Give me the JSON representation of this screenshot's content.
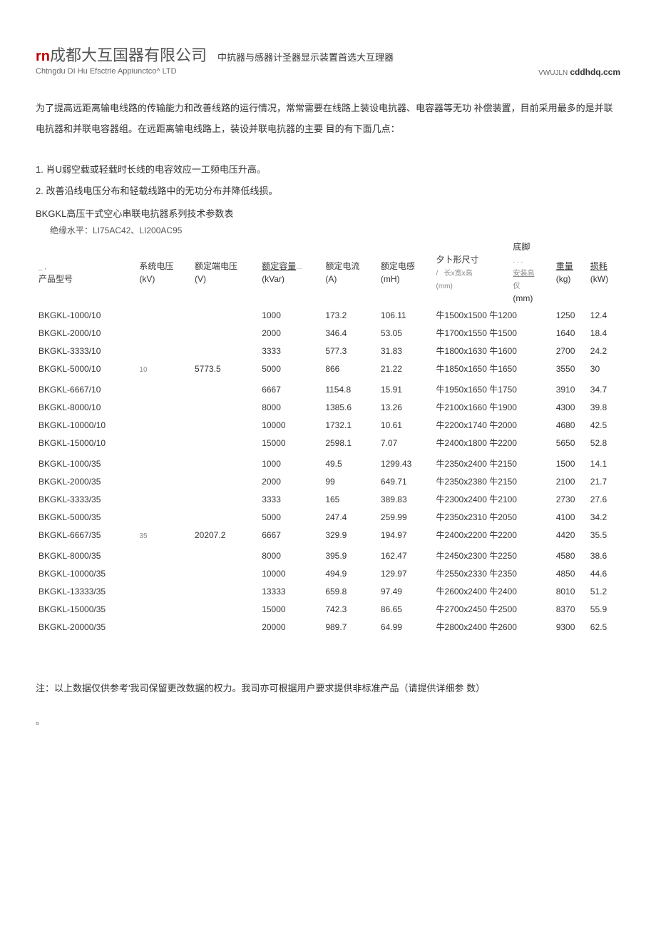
{
  "header": {
    "logo_prefix": "rn",
    "company_name": "成都大互国器有限公司",
    "tagline": "中抗器与感器计圣器显示装置首选大互理器",
    "company_en": "Chtngdu DI Hu Efsctrie Appiunctco^ LTD",
    "website_prefix": "VWUJLN",
    "website": "cddhdq.ccm"
  },
  "intro": "为了提高远距离输电线路的传输能力和改善线路的运行情况，常常需要在线路上装设电抗器、电容器等无功 补偿装置，目前采用最多的是并联电抗器和并联电容器组。在远距离输电线路上，装设并联电抗器的主要 目的有下面几点：",
  "points": {
    "p1": "1. 肖U弱空载或轻载时长线的电容效应一工频电压升高。",
    "p2": "2. 改善沿线电压分布和轻载线路中的无功分布并降低线损。"
  },
  "table_title": "BKGKL高压干式空心串联电抗器系列技术参数表",
  "insulation": "绝缘水平：LI75AC42、LI200AC95",
  "headers": {
    "model": "产品型号",
    "sys_v": "系统电压",
    "sys_v_unit": "(kV)",
    "rated_v": "额定端电压",
    "rated_v_unit": "(V)",
    "capacity": "额定容量",
    "capacity_unit": "(kVar)",
    "current": "额定电流",
    "current_unit": "(A)",
    "inductance": "额定电感",
    "inductance_unit": "(mH)",
    "dims": "夕卜形尺寸",
    "dims_sub": "(mm)",
    "foot": "底脚",
    "foot_sub": "安装高",
    "foot_unit": "(mm)",
    "weight": "重量",
    "weight_unit": "(kg)",
    "loss": "损耗",
    "loss_unit": "(kW)"
  },
  "voltage_10": "10",
  "voltage_10_term": "5773.5",
  "voltage_35": "35",
  "voltage_35_term": "20207.2",
  "rows_10": [
    {
      "model": "BKGKL-1000/10",
      "cap": "1000",
      "cur": "173.2",
      "ind": "106.11",
      "dim": "牛1500x1500 牛1200",
      "wt": "1250",
      "loss": "12.4"
    },
    {
      "model": "BKGKL-2000/10",
      "cap": "2000",
      "cur": "346.4",
      "ind": "53.05",
      "dim": "牛1700x1550 牛1500",
      "wt": "1640",
      "loss": "18.4"
    },
    {
      "model": "BKGKL-3333/10",
      "cap": "3333",
      "cur": "577.3",
      "ind": "31.83",
      "dim": "牛1800x1630 牛1600",
      "wt": "2700",
      "loss": "24.2"
    },
    {
      "model": "BKGKL-5000/10",
      "cap": "5000",
      "cur": "866",
      "ind": "21.22",
      "dim": "牛1850x1650 牛1650",
      "wt": "3550",
      "loss": "30"
    },
    {
      "model": "BKGKL-6667/10",
      "cap": "6667",
      "cur": "1154.8",
      "ind": "15.91",
      "dim": "牛1950x1650 牛1750",
      "wt": "3910",
      "loss": "34.7"
    },
    {
      "model": "BKGKL-8000/10",
      "cap": "8000",
      "cur": "1385.6",
      "ind": "13.26",
      "dim": "牛2100x1660 牛1900",
      "wt": "4300",
      "loss": "39.8"
    },
    {
      "model": "BKGKL-10000/10",
      "cap": "10000",
      "cur": "1732.1",
      "ind": "10.61",
      "dim": "牛2200x1740 牛2000",
      "wt": "4680",
      "loss": "42.5"
    },
    {
      "model": "BKGKL-15000/10",
      "cap": "15000",
      "cur": "2598.1",
      "ind": "7.07",
      "dim": "牛2400x1800 牛2200",
      "wt": "5650",
      "loss": "52.8"
    }
  ],
  "rows_35": [
    {
      "model": "BKGKL-1000/35",
      "cap": "1000",
      "cur": "49.5",
      "ind": "1299.43",
      "dim": "牛2350x2400 牛2150",
      "wt": "1500",
      "loss": "14.1"
    },
    {
      "model": "BKGKL-2000/35",
      "cap": "2000",
      "cur": "99",
      "ind": "649.71",
      "dim": "牛2350x2380 牛2150",
      "wt": "2100",
      "loss": "21.7"
    },
    {
      "model": "BKGKL-3333/35",
      "cap": "3333",
      "cur": "165",
      "ind": "389.83",
      "dim": "牛2300x2400 牛2100",
      "wt": "2730",
      "loss": "27.6"
    },
    {
      "model": "BKGKL-5000/35",
      "cap": "5000",
      "cur": "247.4",
      "ind": "259.99",
      "dim": "牛2350x2310 牛2050",
      "wt": "4100",
      "loss": "34.2"
    },
    {
      "model": "BKGKL-6667/35",
      "cap": "6667",
      "cur": "329.9",
      "ind": "194.97",
      "dim": "牛2400x2200 牛2200",
      "wt": "4420",
      "loss": "35.5"
    },
    {
      "model": "BKGKL-8000/35",
      "cap": "8000",
      "cur": "395.9",
      "ind": "162.47",
      "dim": "牛2450x2300 牛2250",
      "wt": "4580",
      "loss": "38.6"
    },
    {
      "model": "BKGKL-10000/35",
      "cap": "10000",
      "cur": "494.9",
      "ind": "129.97",
      "dim": "牛2550x2330 牛2350",
      "wt": "4850",
      "loss": "44.6"
    },
    {
      "model": "BKGKL-13333/35",
      "cap": "13333",
      "cur": "659.8",
      "ind": "97.49",
      "dim": "牛2600x2400 牛2400",
      "wt": "8010",
      "loss": "51.2"
    },
    {
      "model": "BKGKL-15000/35",
      "cap": "15000",
      "cur": "742.3",
      "ind": "86.65",
      "dim": "牛2700x2450 牛2500",
      "wt": "8370",
      "loss": "55.9"
    },
    {
      "model": "BKGKL-20000/35",
      "cap": "20000",
      "cur": "989.7",
      "ind": "64.99",
      "dim": "牛2800x2400 牛2600",
      "wt": "9300",
      "loss": "62.5"
    }
  ],
  "footer_note": "注：以上数据仅供参考'我司保留更改数据的权力。我司亦可根据用户要求提供非标准产品（请提供详细参 数）",
  "footer_dot": "。",
  "colors": {
    "accent": "#c00000",
    "text": "#333333",
    "muted": "#666666",
    "bg": "#ffffff"
  }
}
